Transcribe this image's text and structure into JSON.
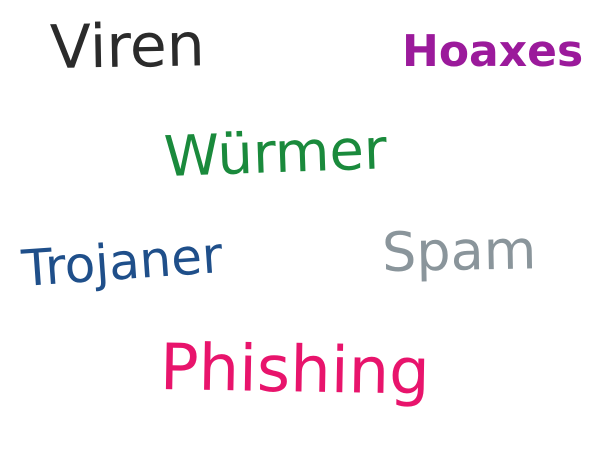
{
  "words": {
    "viren": {
      "text": "Viren",
      "color": "#2b2b2b"
    },
    "hoaxes": {
      "text": "Hoaxes",
      "color": "#9b1a9b"
    },
    "wuermer": {
      "text": "Würmer",
      "color": "#1a8a3c"
    },
    "trojaner": {
      "text": "Trojaner",
      "color": "#1f4f8a"
    },
    "spam": {
      "text": "Spam",
      "color": "#8a959b"
    },
    "phishing": {
      "text": "Phishing",
      "color": "#e8146c"
    }
  }
}
